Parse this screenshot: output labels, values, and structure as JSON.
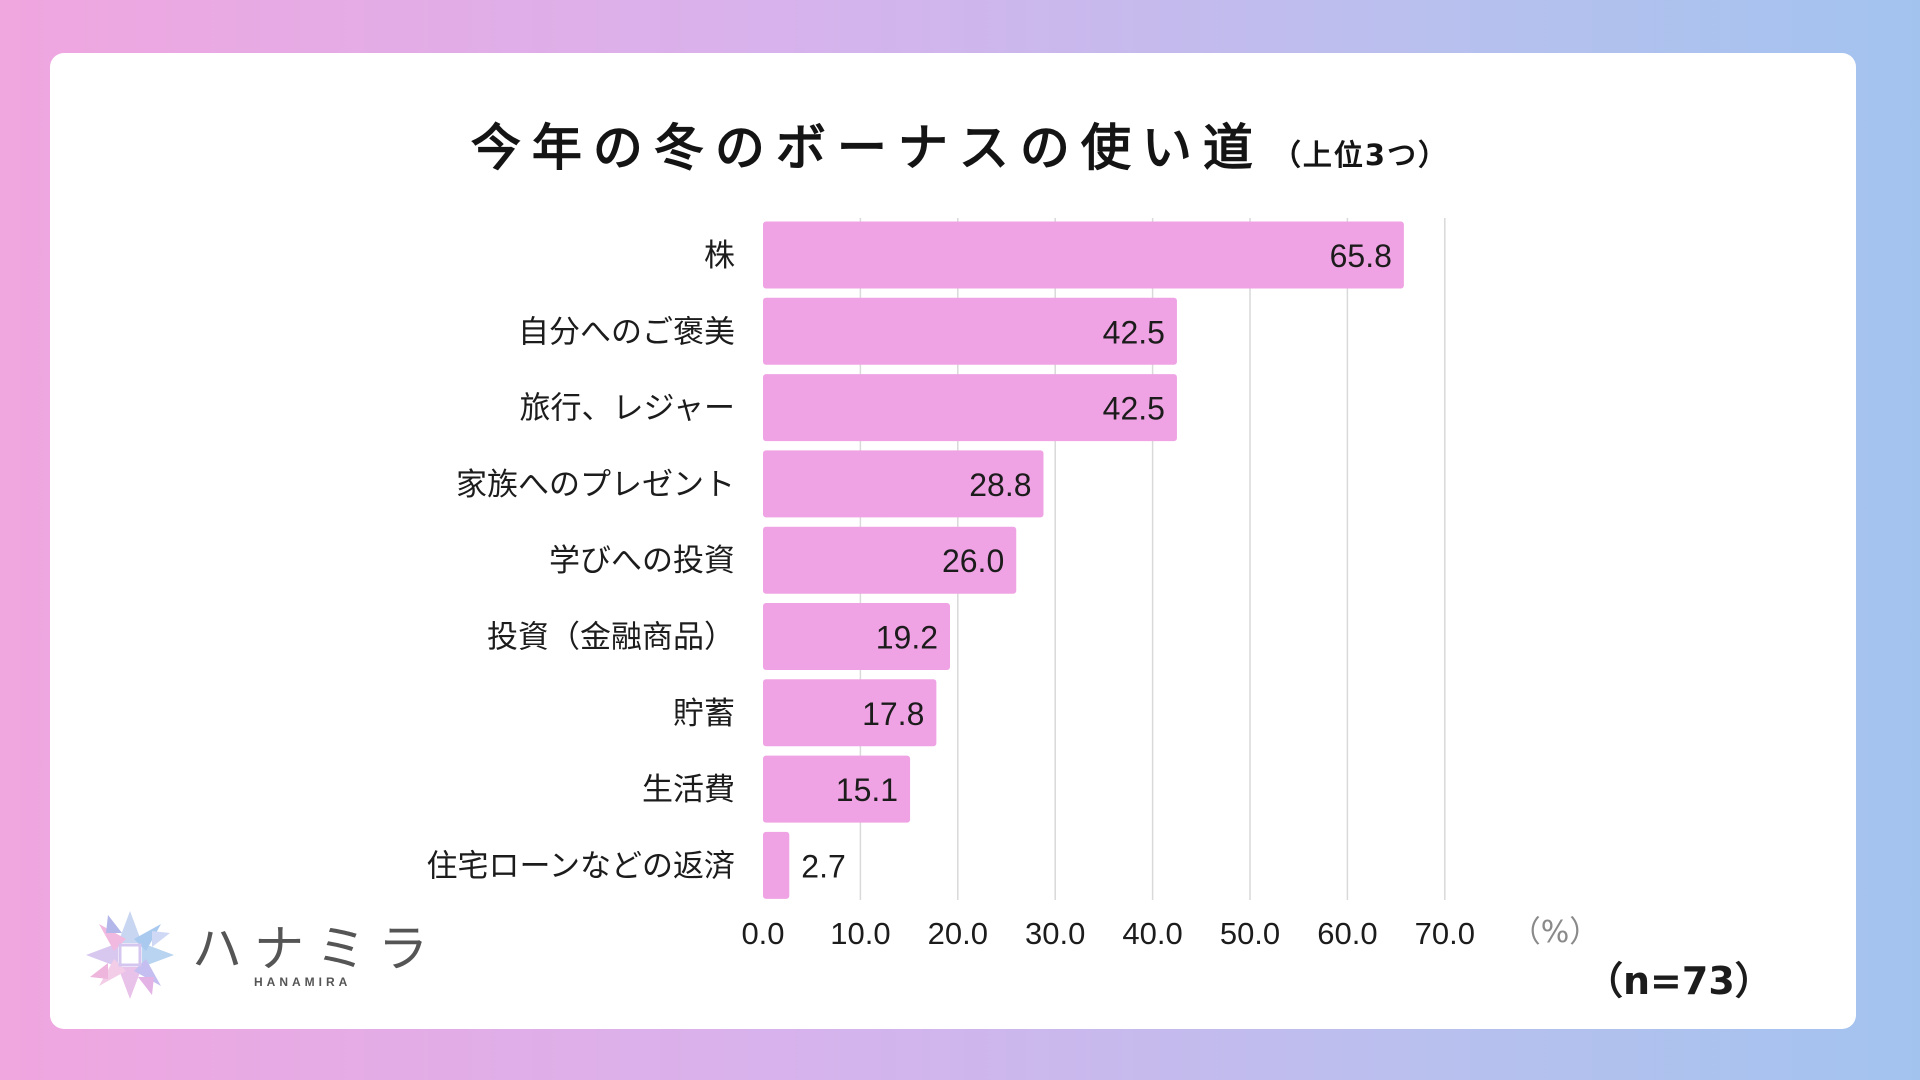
{
  "title": "今年の冬のボーナスの使い道",
  "subtitle": "（上位3つ）",
  "sample_size": "（n=73）",
  "brand": {
    "name": "ハナミラ",
    "sub": "HANAMIRA"
  },
  "colors": {
    "bar": "#f0a3e4",
    "grid": "#d9d9d9",
    "card": "#ffffff"
  },
  "chart_data": {
    "type": "bar",
    "orientation": "horizontal",
    "title": "今年の冬のボーナスの使い道（上位3つ）",
    "categories": [
      "株",
      "自分へのご褒美",
      "旅行、レジャー",
      "家族へのプレゼント",
      "学びへの投資",
      "投資（金融商品）",
      "貯蓄",
      "生活費",
      "住宅ローンなどの返済"
    ],
    "values": [
      65.8,
      42.5,
      42.5,
      28.8,
      26.0,
      19.2,
      17.8,
      15.1,
      2.7
    ],
    "value_labels": [
      "65.8",
      "42.5",
      "42.5",
      "28.8",
      "26.0",
      "19.2",
      "17.8",
      "15.1",
      "2.7"
    ],
    "xlim": [
      0,
      70
    ],
    "xticks": [
      "0.0",
      "10.0",
      "20.0",
      "30.0",
      "40.0",
      "50.0",
      "60.0",
      "70.0"
    ],
    "xunit": "（%）",
    "grid": true
  }
}
